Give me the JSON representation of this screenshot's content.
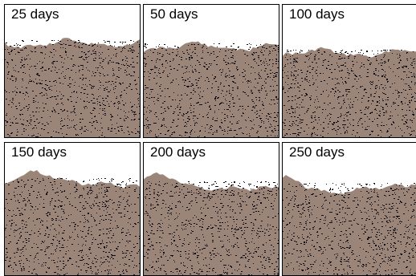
{
  "panels": [
    {
      "label": "25 days"
    },
    {
      "label": "50 days"
    },
    {
      "label": "100 days"
    },
    {
      "label": "150 days"
    },
    {
      "label": "200 days"
    },
    {
      "label": "250 days"
    }
  ],
  "colors": {
    "deep": "#2b2f8a",
    "blue": "#2a63c4",
    "cyan": "#24a6d8",
    "teal": "#2ebf9a",
    "green": "#7fcf5a",
    "yellow": "#e8ee6e",
    "pale": "#d7d2b8",
    "brown": "#9a8578",
    "speckle": "#0c0c14"
  }
}
